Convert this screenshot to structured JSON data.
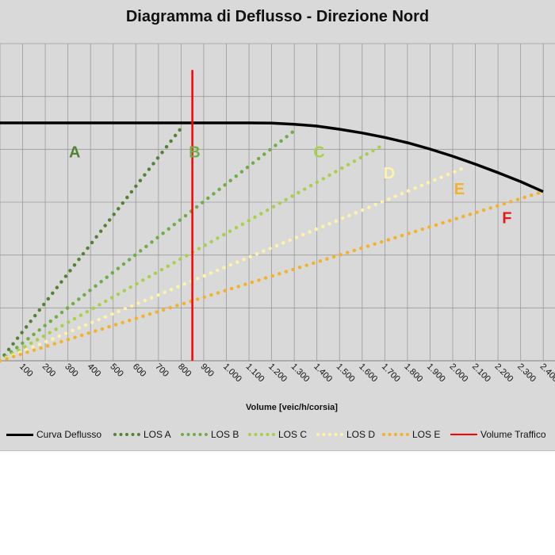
{
  "chart_data": {
    "type": "line",
    "title": "Diagramma di Deflusso - Direzione Nord",
    "xlabel": "Volume [veic/h/corsia]",
    "ylabel": "",
    "x_ticks": [
      "100",
      "200",
      "300",
      "400",
      "500",
      "600",
      "700",
      "800",
      "900",
      "1.000",
      "1.100",
      "1.200",
      "1.300",
      "1.400",
      "1.500",
      "1.600",
      "1.700",
      "1.800",
      "1.900",
      "2.000",
      "2.100",
      "2.200",
      "2.300",
      "2.400"
    ],
    "xlim": [
      0,
      2400
    ],
    "ylim": [
      0,
      120
    ],
    "grid": true,
    "legend_position": "bottom",
    "series": [
      {
        "name": "Curva Deflusso",
        "color": "#000000",
        "style": "solid",
        "x": [
          0,
          300,
          600,
          900,
          1000,
          1100,
          1200,
          1300,
          1400,
          1500,
          1600,
          1700,
          1800,
          1900,
          2000,
          2100,
          2200,
          2300,
          2400
        ],
        "y": [
          90,
          90,
          90,
          90,
          90,
          90,
          89.9,
          89.5,
          88.8,
          87.6,
          86.2,
          84.5,
          82.5,
          80.1,
          77.4,
          74.4,
          71.2,
          67.8,
          64
        ]
      },
      {
        "name": "LOS A",
        "color": "#548235",
        "style": "dotted",
        "x": [
          0,
          800
        ],
        "y": [
          0,
          88
        ]
      },
      {
        "name": "LOS B",
        "color": "#70ad47",
        "style": "dotted",
        "x": [
          0,
          1300
        ],
        "y": [
          0,
          87
        ]
      },
      {
        "name": "LOS C",
        "color": "#a9d04a",
        "style": "dotted",
        "x": [
          0,
          1700
        ],
        "y": [
          0,
          82
        ]
      },
      {
        "name": "LOS D",
        "color": "#fff2a8",
        "style": "dotted",
        "x": [
          0,
          2050
        ],
        "y": [
          0,
          73
        ]
      },
      {
        "name": "LOS E",
        "color": "#f4b12a",
        "style": "dotted",
        "x": [
          0,
          2400
        ],
        "y": [
          0,
          64
        ]
      },
      {
        "name": "Volume Traffico",
        "color": "#ff0000",
        "style": "solid",
        "x": [
          850,
          850
        ],
        "y": [
          0,
          110
        ]
      }
    ],
    "annotations": [
      {
        "text": "A",
        "x": 330,
        "y": 77,
        "color": "#548235"
      },
      {
        "text": "B",
        "x": 860,
        "y": 77,
        "color": "#70ad47"
      },
      {
        "text": "C",
        "x": 1410,
        "y": 77,
        "color": "#a9d04a"
      },
      {
        "text": "D",
        "x": 1720,
        "y": 69,
        "color": "#fff2a8"
      },
      {
        "text": "E",
        "x": 2030,
        "y": 63,
        "color": "#f4b12a"
      },
      {
        "text": "F",
        "x": 2240,
        "y": 52,
        "color": "#e31a1c"
      }
    ]
  }
}
